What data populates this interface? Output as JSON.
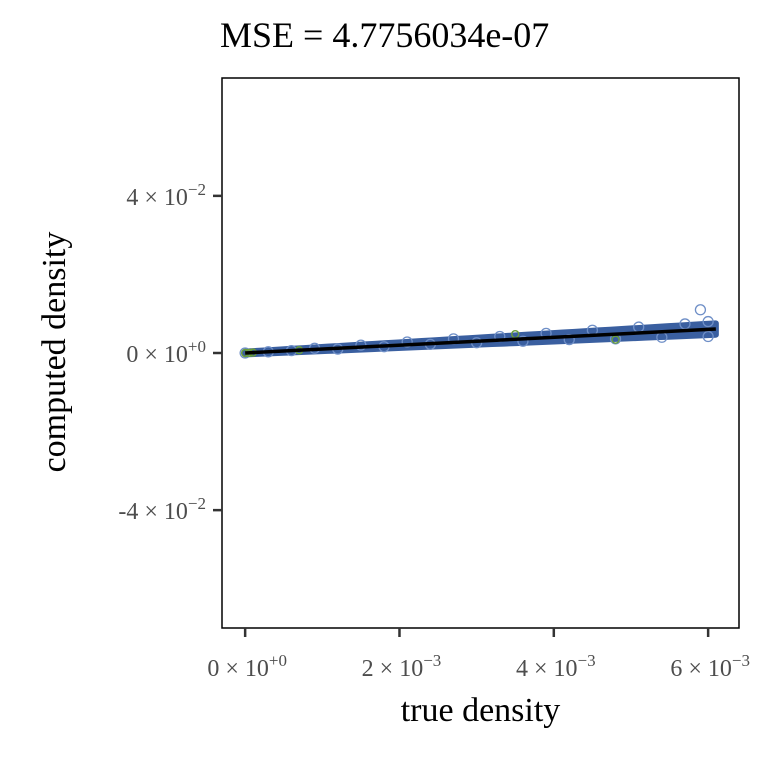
{
  "chart_data": {
    "type": "scatter",
    "title": "MSE = 4.7756034e-07",
    "xlabel": "true density",
    "ylabel": "computed density",
    "xlim": [
      -0.0003,
      0.0064
    ],
    "ylim": [
      -0.07,
      0.07
    ],
    "x_ticks": [
      {
        "value": 0,
        "mantissa": "0",
        "exponent": "+0"
      },
      {
        "value": 0.002,
        "mantissa": "2",
        "exponent": "-3"
      },
      {
        "value": 0.004,
        "mantissa": "4",
        "exponent": "-3"
      },
      {
        "value": 0.006,
        "mantissa": "6",
        "exponent": "-3"
      }
    ],
    "y_ticks": [
      {
        "value": 0.04,
        "mantissa": "4",
        "exponent": "-2"
      },
      {
        "value": 0,
        "mantissa": "0",
        "exponent": "+0"
      },
      {
        "value": -0.04,
        "mantissa": "-4",
        "exponent": "-2"
      }
    ],
    "grid": false,
    "series": [
      {
        "marker": "open-circle",
        "color": "#3a5fa0",
        "points": [
          [
            0.0,
            0.0
          ],
          [
            0.0003,
            0.0003
          ],
          [
            0.0006,
            0.0006
          ],
          [
            0.0009,
            0.0012
          ],
          [
            0.0012,
            0.001
          ],
          [
            0.0015,
            0.002
          ],
          [
            0.0018,
            0.0016
          ],
          [
            0.0021,
            0.0028
          ],
          [
            0.0024,
            0.0022
          ],
          [
            0.0027,
            0.0036
          ],
          [
            0.003,
            0.0026
          ],
          [
            0.0033,
            0.0042
          ],
          [
            0.0036,
            0.003
          ],
          [
            0.0039,
            0.005
          ],
          [
            0.0042,
            0.0034
          ],
          [
            0.0045,
            0.0058
          ],
          [
            0.0048,
            0.0036
          ],
          [
            0.0051,
            0.0066
          ],
          [
            0.0054,
            0.004
          ],
          [
            0.0057,
            0.0074
          ],
          [
            0.0059,
            0.011
          ],
          [
            0.006,
            0.0042
          ],
          [
            0.006,
            0.008
          ]
        ]
      },
      {
        "marker": "open-circle",
        "color": "#6a9e3a",
        "points": [
          [
            0.0,
            0.0
          ],
          [
            5e-05,
            2e-05
          ],
          [
            0.0001,
            0.0001
          ],
          [
            0.0007,
            0.0007
          ],
          [
            0.0035,
            0.0048
          ],
          [
            0.0048,
            0.0034
          ]
        ]
      },
      {
        "type": "line",
        "color": "#000000",
        "points": [
          [
            0.0,
            0.0
          ],
          [
            0.0061,
            0.0061
          ]
        ]
      }
    ]
  }
}
